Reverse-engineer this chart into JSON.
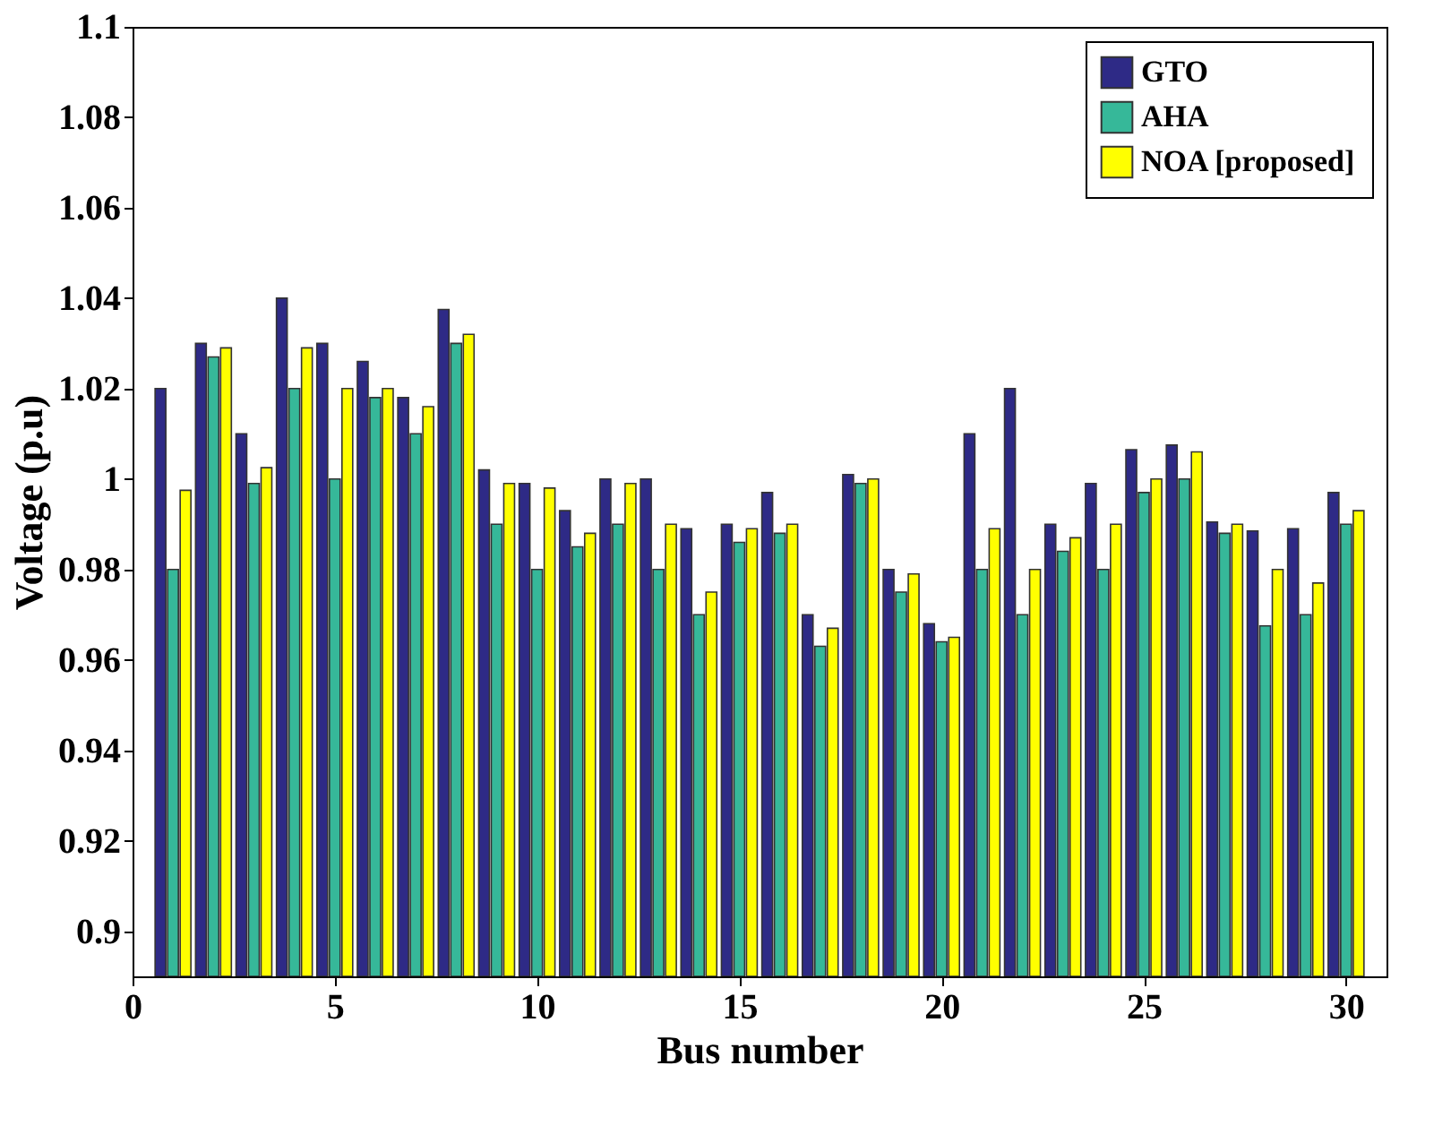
{
  "chart_data": {
    "type": "bar",
    "xlabel": "Bus number",
    "ylabel": "Voltage (p.u)",
    "x": [
      1,
      2,
      3,
      4,
      5,
      6,
      7,
      8,
      9,
      10,
      11,
      12,
      13,
      14,
      15,
      16,
      17,
      18,
      19,
      20,
      21,
      22,
      23,
      24,
      25,
      26,
      27,
      28,
      29,
      30
    ],
    "series": [
      {
        "name": "GTO",
        "color": "#2e2a86",
        "values": [
          1.02,
          1.03,
          1.01,
          1.04,
          1.03,
          1.026,
          1.018,
          1.0375,
          1.002,
          0.999,
          0.993,
          1.0,
          1.0,
          0.989,
          0.99,
          0.997,
          0.97,
          1.001,
          0.98,
          0.968,
          1.01,
          1.02,
          0.99,
          0.999,
          1.0065,
          1.0075,
          0.9905,
          0.9885,
          0.989,
          0.997
        ]
      },
      {
        "name": "AHA",
        "color": "#36b899",
        "values": [
          0.98,
          1.027,
          0.999,
          1.02,
          1.0,
          1.018,
          1.01,
          1.03,
          0.99,
          0.98,
          0.985,
          0.99,
          0.98,
          0.97,
          0.986,
          0.988,
          0.963,
          0.999,
          0.975,
          0.964,
          0.98,
          0.97,
          0.984,
          0.98,
          0.997,
          1.0,
          0.988,
          0.9675,
          0.97,
          0.99
        ]
      },
      {
        "name": "NOA [proposed]",
        "color": "#ffff00",
        "values": [
          0.9975,
          1.029,
          1.0025,
          1.029,
          1.02,
          1.02,
          1.016,
          1.032,
          0.999,
          0.998,
          0.988,
          0.999,
          0.99,
          0.975,
          0.989,
          0.99,
          0.967,
          1.0,
          0.979,
          0.965,
          0.989,
          0.98,
          0.987,
          0.99,
          1.0,
          1.006,
          0.99,
          0.98,
          0.977,
          0.993
        ]
      }
    ],
    "xlim": [
      0,
      31
    ],
    "xticks": [
      0,
      5,
      10,
      15,
      20,
      25,
      30
    ],
    "ylim": [
      0.89,
      1.1
    ],
    "yticks": [
      0.9,
      0.92,
      0.94,
      0.96,
      0.98,
      1,
      1.02,
      1.04,
      1.06,
      1.08,
      1.1
    ],
    "legend": "top right",
    "grid": false
  }
}
